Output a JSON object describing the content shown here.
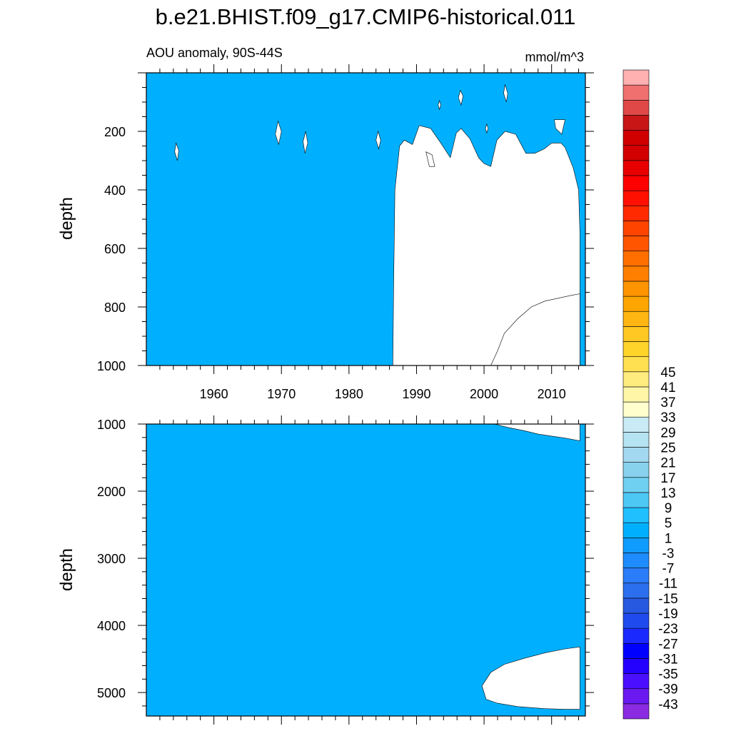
{
  "chart_data": {
    "type": "contour",
    "title": "b.e21.BHIST.f09_g17.CMIP6-historical.011",
    "subtitle": "AOU anomaly, 90S-44S",
    "units": "mmol/m^3",
    "x_range": [
      1950,
      2015
    ],
    "x_ticks": [
      1960,
      1970,
      1980,
      1990,
      2000,
      2010
    ],
    "panels": [
      {
        "name": "upper",
        "ylabel": "depth",
        "y_range": [
          0,
          1000
        ],
        "y_ticks": [
          200,
          400,
          600,
          800,
          1000
        ],
        "background_level": "1",
        "regions": [
          {
            "level": "3",
            "value_range": [
              1,
              5
            ],
            "points": [
              [
                1986.5,
                1000
              ],
              [
                1986.6,
                750
              ],
              [
                1986.8,
                400
              ],
              [
                1987.5,
                250
              ],
              [
                1988.2,
                230
              ],
              [
                1989.4,
                245
              ],
              [
                1990.4,
                180
              ],
              [
                1992.1,
                190
              ],
              [
                1993.6,
                240
              ],
              [
                1995.0,
                290
              ],
              [
                1995.9,
                205
              ],
              [
                1996.6,
                190
              ],
              [
                1997.9,
                225
              ],
              [
                1999.2,
                290
              ],
              [
                2000.0,
                310
              ],
              [
                2001.0,
                320
              ],
              [
                2001.9,
                230
              ],
              [
                2003.1,
                200
              ],
              [
                2004.7,
                210
              ],
              [
                2006.2,
                275
              ],
              [
                2007.5,
                275
              ],
              [
                2008.9,
                260
              ],
              [
                2010.0,
                240
              ],
              [
                2011.4,
                240
              ],
              [
                2012.0,
                255
              ],
              [
                2013.2,
                325
              ],
              [
                2014.0,
                400
              ],
              [
                2014.2,
                550
              ],
              [
                2014.2,
                1000
              ]
            ]
          },
          {
            "level": "3",
            "value_range": [
              1,
              5
            ],
            "points": [
              [
                2003.0,
                890
              ],
              [
                2005.0,
                840
              ],
              [
                2007.0,
                800
              ],
              [
                2009.0,
                780
              ],
              [
                2011.0,
                770
              ],
              [
                2013.0,
                760
              ],
              [
                2014.2,
                755
              ],
              [
                2014.2,
                1000
              ],
              [
                2001.0,
                1000
              ],
              [
                2002.0,
                950
              ]
            ]
          },
          {
            "level": "3",
            "value_range": [
              1,
              5
            ],
            "points": [
              [
                1954.4,
                240
              ],
              [
                1954.8,
                265
              ],
              [
                1954.6,
                300
              ],
              [
                1954.2,
                270
              ]
            ]
          },
          {
            "level": "3",
            "value_range": [
              1,
              5
            ],
            "points": [
              [
                1969.5,
                165
              ],
              [
                1970.0,
                200
              ],
              [
                1969.6,
                245
              ],
              [
                1969.1,
                210
              ]
            ]
          },
          {
            "level": "3",
            "value_range": [
              1,
              5
            ],
            "points": [
              [
                1973.6,
                200
              ],
              [
                1973.9,
                240
              ],
              [
                1973.5,
                275
              ],
              [
                1973.2,
                235
              ]
            ]
          },
          {
            "level": "3",
            "value_range": [
              1,
              5
            ],
            "points": [
              [
                1991.4,
                270
              ],
              [
                1992.3,
                280
              ],
              [
                1992.7,
                320
              ],
              [
                1991.9,
                320
              ]
            ]
          },
          {
            "level": "-1",
            "value_range": [
              -3,
              1
            ],
            "points": [
              [
                1996.5,
                60
              ],
              [
                1996.9,
                80
              ],
              [
                1996.6,
                110
              ],
              [
                1996.2,
                85
              ]
            ]
          },
          {
            "level": "-1",
            "value_range": [
              -3,
              1
            ],
            "points": [
              [
                2003.1,
                40
              ],
              [
                2003.5,
                70
              ],
              [
                2003.3,
                100
              ],
              [
                2002.9,
                70
              ]
            ]
          },
          {
            "level": "-1",
            "value_range": [
              -3,
              1
            ],
            "points": [
              [
                2010.4,
                160
              ],
              [
                2012.0,
                160
              ],
              [
                2011.5,
                210
              ],
              [
                2010.6,
                190
              ]
            ]
          },
          {
            "level": "-1",
            "value_range": [
              -3,
              1
            ],
            "points": [
              [
                1984.3,
                200
              ],
              [
                1984.7,
                230
              ],
              [
                1984.4,
                260
              ],
              [
                1984.0,
                230
              ]
            ]
          },
          {
            "level": "-1",
            "value_range": [
              -3,
              1
            ],
            "points": [
              [
                1993.4,
                95
              ],
              [
                1993.6,
                110
              ],
              [
                1993.4,
                125
              ],
              [
                1993.2,
                110
              ]
            ]
          },
          {
            "level": "-1",
            "value_range": [
              -3,
              1
            ],
            "points": [
              [
                2000.4,
                175
              ],
              [
                2000.6,
                190
              ],
              [
                2000.4,
                205
              ],
              [
                2000.2,
                190
              ]
            ]
          }
        ]
      },
      {
        "name": "lower",
        "ylabel": "depth",
        "y_range": [
          1000,
          5350
        ],
        "y_ticks": [
          1000,
          2000,
          3000,
          4000,
          5000
        ],
        "background_level": "1",
        "regions": [
          {
            "level": "3",
            "value_range": [
              1,
              5
            ],
            "points": [
              [
                2001.5,
                1000
              ],
              [
                2003.5,
                1050
              ],
              [
                2006.0,
                1100
              ],
              [
                2008.0,
                1150
              ],
              [
                2010.0,
                1180
              ],
              [
                2012.0,
                1210
              ],
              [
                2014.2,
                1250
              ],
              [
                2014.2,
                1000
              ]
            ]
          },
          {
            "level": "3",
            "value_range": [
              1,
              5
            ],
            "points": [
              [
                1999.7,
                4900
              ],
              [
                2001.0,
                4700
              ],
              [
                2003.0,
                4580
              ],
              [
                2006.0,
                4490
              ],
              [
                2009.0,
                4410
              ],
              [
                2012.0,
                4350
              ],
              [
                2014.2,
                4320
              ],
              [
                2014.2,
                5250
              ],
              [
                2012.0,
                5250
              ],
              [
                2009.0,
                5240
              ],
              [
                2005.0,
                5210
              ],
              [
                2002.0,
                5160
              ],
              [
                2000.3,
                5100
              ]
            ]
          }
        ]
      }
    ],
    "colorbar": {
      "colors": [
        "#8a2be2",
        "#6a1af0",
        "#4b0fff",
        "#2400ff",
        "#0000ff",
        "#1a2aff",
        "#1f4bee",
        "#2659e0",
        "#2b6fee",
        "#2b7cf8",
        "#1e8cff",
        "#109cff",
        "#00b0ff",
        "#20c0ff",
        "#4dc8f5",
        "#6fd0f2",
        "#88d2ee",
        "#a3d9f0",
        "#b5e3f2",
        "#c8ebf5",
        "#fffecc",
        "#fff6a8",
        "#ffec7f",
        "#ffe050",
        "#ffd42a",
        "#ffc823",
        "#ffb612",
        "#ffa500",
        "#ff9400",
        "#ff8000",
        "#ff6f00",
        "#ff5500",
        "#ff4400",
        "#ff2a00",
        "#ff1000",
        "#ff0000",
        "#e80000",
        "#d20000",
        "#d00000",
        "#c81616",
        "#e04848",
        "#f07070",
        "#ffb0b0"
      ],
      "labels": [
        "-43",
        "-39",
        "-35",
        "-31",
        "-27",
        "-23",
        "-19",
        "-15",
        "-11",
        "-7",
        "-3",
        "1",
        "5",
        "9",
        "13",
        "17",
        "21",
        "25",
        "29",
        "33",
        "37",
        "41",
        "45"
      ]
    }
  }
}
